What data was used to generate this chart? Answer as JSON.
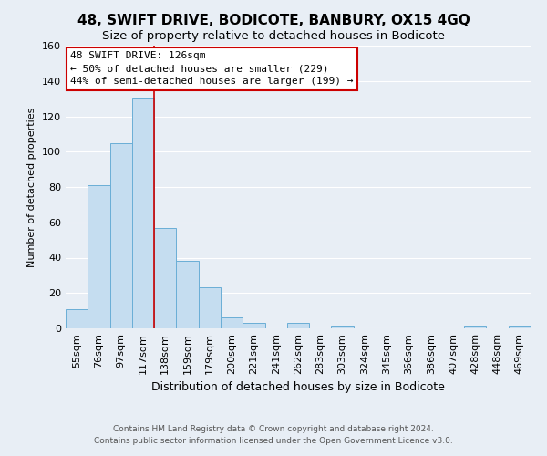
{
  "title": "48, SWIFT DRIVE, BODICOTE, BANBURY, OX15 4GQ",
  "subtitle": "Size of property relative to detached houses in Bodicote",
  "xlabel": "Distribution of detached houses by size in Bodicote",
  "ylabel": "Number of detached properties",
  "bar_labels": [
    "55sqm",
    "76sqm",
    "97sqm",
    "117sqm",
    "138sqm",
    "159sqm",
    "179sqm",
    "200sqm",
    "221sqm",
    "241sqm",
    "262sqm",
    "283sqm",
    "303sqm",
    "324sqm",
    "345sqm",
    "366sqm",
    "386sqm",
    "407sqm",
    "428sqm",
    "448sqm",
    "469sqm"
  ],
  "bar_values": [
    11,
    81,
    105,
    130,
    57,
    38,
    23,
    6,
    3,
    0,
    3,
    0,
    1,
    0,
    0,
    0,
    0,
    0,
    1,
    0,
    1
  ],
  "bar_color": "#c5ddf0",
  "bar_edge_color": "#6aaed6",
  "property_line_x": 3.5,
  "property_line_color": "#cc0000",
  "ylim": [
    0,
    160
  ],
  "yticks": [
    0,
    20,
    40,
    60,
    80,
    100,
    120,
    140,
    160
  ],
  "annotation_title": "48 SWIFT DRIVE: 126sqm",
  "annotation_line1": "← 50% of detached houses are smaller (229)",
  "annotation_line2": "44% of semi-detached houses are larger (199) →",
  "annotation_box_color": "#ffffff",
  "annotation_box_edge": "#cc0000",
  "footer_line1": "Contains HM Land Registry data © Crown copyright and database right 2024.",
  "footer_line2": "Contains public sector information licensed under the Open Government Licence v3.0.",
  "background_color": "#e8eef5",
  "grid_color": "#ffffff",
  "title_fontsize": 11,
  "subtitle_fontsize": 9.5,
  "ylabel_fontsize": 8,
  "xlabel_fontsize": 9,
  "tick_fontsize": 8,
  "footer_fontsize": 6.5
}
